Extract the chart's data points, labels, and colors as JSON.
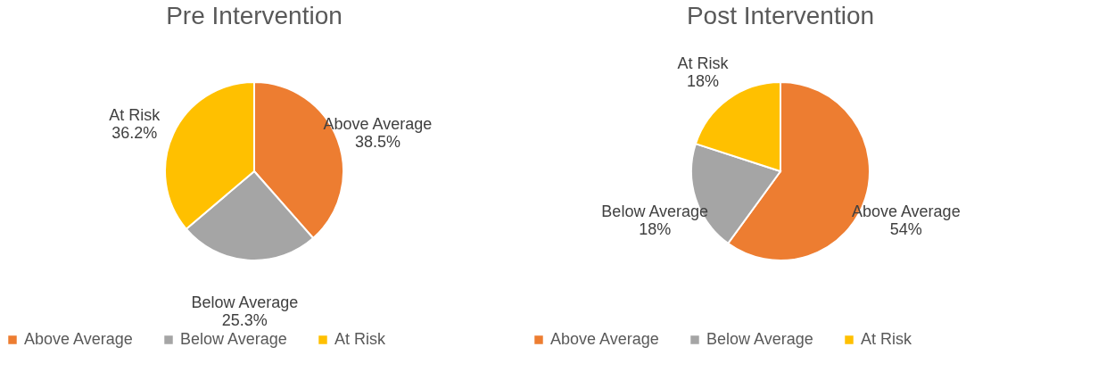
{
  "chart_data": [
    {
      "type": "pie",
      "title": "Pre Intervention",
      "categories": [
        "Above Average",
        "Below Average",
        "At Risk"
      ],
      "values": [
        38.5,
        25.3,
        36.2
      ],
      "value_labels": [
        "38.5%",
        "25.3%",
        "36.2%"
      ],
      "colors": [
        "#ed7d31",
        "#a5a5a5",
        "#ffc000"
      ],
      "legend": "bottom"
    },
    {
      "type": "pie",
      "title": "Post Intervention",
      "categories": [
        "Above Average",
        "Below Average",
        "At Risk"
      ],
      "values": [
        54,
        18,
        18
      ],
      "value_labels": [
        "54%",
        "18%",
        "18%"
      ],
      "colors": [
        "#ed7d31",
        "#a5a5a5",
        "#ffc000"
      ],
      "legend": "bottom"
    }
  ]
}
